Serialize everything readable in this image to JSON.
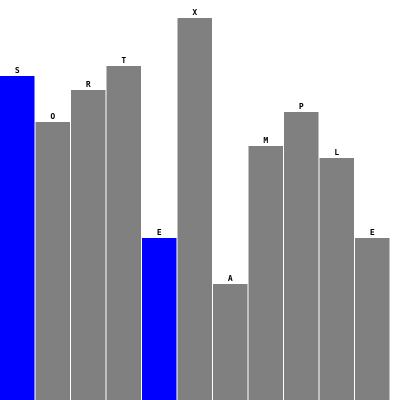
{
  "chart_data": {
    "type": "bar",
    "title": "",
    "xlabel": "",
    "ylabel": "",
    "ylim": [
      0,
      20
    ],
    "categories": [
      "S",
      "O",
      "R",
      "T",
      "E",
      "X",
      "A",
      "M",
      "P",
      "L",
      "E"
    ],
    "values": [
      16.2,
      13.9,
      15.5,
      16.7,
      8.1,
      19.1,
      5.8,
      12.7,
      14.4,
      12.1,
      8.1
    ],
    "highlighted": [
      0,
      4
    ],
    "grid": false,
    "legend": "none"
  },
  "colors": {
    "bar": "#808080",
    "highlight": "#0000ff",
    "separator": "#ffffff",
    "label": "#000000",
    "background": "#ffffff"
  }
}
